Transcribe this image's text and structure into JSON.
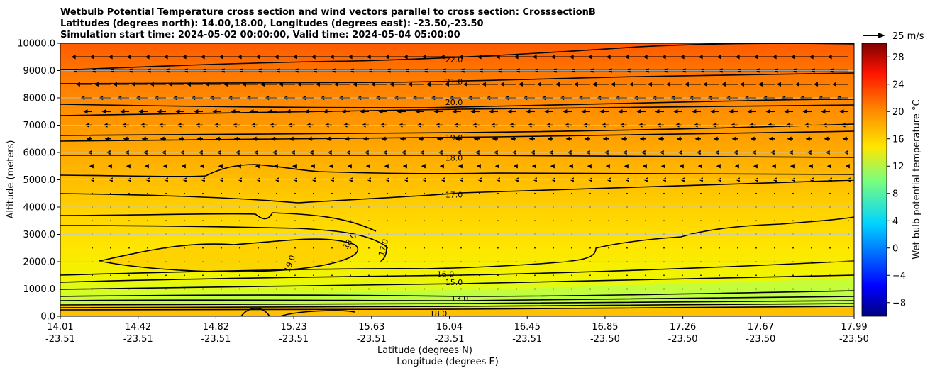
{
  "chart_data": {
    "type": "contourf",
    "title_lines": [
      "Wetbulb Potential Temperature cross section and wind vectors parallel to cross section: CrosssectionB",
      "Latitudes (degrees north): 14.00,18.00, Longitudes (degrees east): -23.50,-23.50",
      "Simulation start time: 2024-05-02 00:00:00, Valid time: 2024-05-04 05:00:00"
    ],
    "ylabel": "Altitude (meters)",
    "xlabel_lat": "Latitude (degrees N)",
    "xlabel_lon": "Longitude (degrees E)",
    "ylim": [
      0,
      10000
    ],
    "y_ticks": [
      {
        "value": 0,
        "label": "0.0"
      },
      {
        "value": 1000,
        "label": "1000.0"
      },
      {
        "value": 2000,
        "label": "2000.0"
      },
      {
        "value": 3000,
        "label": "3000.0"
      },
      {
        "value": 4000,
        "label": "4000.0"
      },
      {
        "value": 5000,
        "label": "5000.0"
      },
      {
        "value": 6000,
        "label": "6000.0"
      },
      {
        "value": 7000,
        "label": "7000.0"
      },
      {
        "value": 8000,
        "label": "8000.0"
      },
      {
        "value": 9000,
        "label": "9000.0"
      },
      {
        "value": 10000,
        "label": "10000.0"
      }
    ],
    "x_ticks": [
      {
        "lat": "14.01",
        "lon": "-23.51"
      },
      {
        "lat": "14.42",
        "lon": "-23.51"
      },
      {
        "lat": "14.82",
        "lon": "-23.51"
      },
      {
        "lat": "15.23",
        "lon": "-23.51"
      },
      {
        "lat": "15.63",
        "lon": "-23.51"
      },
      {
        "lat": "16.04",
        "lon": "-23.51"
      },
      {
        "lat": "16.45",
        "lon": "-23.51"
      },
      {
        "lat": "16.85",
        "lon": "-23.50"
      },
      {
        "lat": "17.26",
        "lon": "-23.50"
      },
      {
        "lat": "17.67",
        "lon": "-23.50"
      },
      {
        "lat": "17.99",
        "lon": "-23.50"
      }
    ],
    "colorbar": {
      "label": "Wet bulb potential temperature $^\\circ$C",
      "label_text": "Wet bulb potential temperature °C",
      "range": [
        -10,
        30
      ],
      "ticks": [
        -8,
        -4,
        0,
        4,
        8,
        12,
        16,
        20,
        24,
        28
      ],
      "tick_labels": [
        "−8",
        "−4",
        "0",
        "4",
        "8",
        "12",
        "16",
        "20",
        "24",
        "28"
      ]
    },
    "wind_reference": {
      "speed_ms": 25,
      "label": "25 m/s"
    },
    "contour_labels": [
      {
        "text": "22.0",
        "alt": 9400
      },
      {
        "text": "21.0",
        "alt": 8600
      },
      {
        "text": "20.0",
        "alt": 7850
      },
      {
        "text": "19.0",
        "alt": 6550
      },
      {
        "text": "18.0",
        "alt": 5800
      },
      {
        "text": "17.0",
        "alt": 4450
      },
      {
        "text": "16.0",
        "alt": 1550
      },
      {
        "text": "15.0",
        "alt": 1250
      },
      {
        "text": "13.0",
        "alt": 650
      },
      {
        "text": "18.0",
        "alt": 100
      },
      {
        "text": "19.0",
        "alt": 2000
      },
      {
        "text": "18.0",
        "alt": 2800
      },
      {
        "text": "17.0",
        "alt": 2600
      }
    ],
    "wind_rows": [
      {
        "alt": 9500,
        "u": -14
      },
      {
        "alt": 9000,
        "u": -13
      },
      {
        "alt": 8500,
        "u": -11
      },
      {
        "alt": 8000,
        "u": -8
      },
      {
        "alt": 7500,
        "u": -6
      },
      {
        "alt": 7000,
        "u": -5
      },
      {
        "alt": 6500,
        "u": -4
      },
      {
        "alt": 6000,
        "u": -3
      },
      {
        "alt": 5500,
        "u": -2
      },
      {
        "alt": 5000,
        "u": -1.5
      },
      {
        "alt": 4500,
        "u": -0.5
      },
      {
        "alt": 4000,
        "u": -0.3
      },
      {
        "alt": 3500,
        "u": -0.2
      },
      {
        "alt": 3000,
        "u": -0.2
      },
      {
        "alt": 2500,
        "u": -0.1
      },
      {
        "alt": 2000,
        "u": -0.1
      },
      {
        "alt": 1500,
        "u": -0.1
      },
      {
        "alt": 1000,
        "u": -0.1
      }
    ]
  }
}
